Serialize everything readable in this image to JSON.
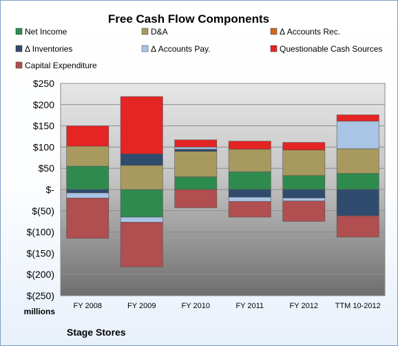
{
  "chart_data": {
    "type": "bar",
    "stacked": true,
    "title": "Free Cash Flow Components",
    "unit_label": "millions",
    "footer": "Stage Stores",
    "categories": [
      "FY 2008",
      "FY 2009",
      "FY 2010",
      "FY 2011",
      "FY 2012",
      "TTM 10-2012"
    ],
    "ylim": [
      -250,
      250
    ],
    "yticks": [
      250,
      200,
      150,
      100,
      50,
      0,
      -50,
      -100,
      -150,
      -200,
      -250
    ],
    "ytick_labels": [
      "$250",
      "$200",
      "$150",
      "$100",
      "$50",
      "$-",
      "$(50)",
      "$(100)",
      "$(150)",
      "$(200)",
      "$(250)"
    ],
    "legend_position": "top",
    "grid": true,
    "series": [
      {
        "name": "Net Income",
        "color": "#2e8b4e",
        "values": [
          55,
          -65,
          30,
          42,
          33,
          38
        ]
      },
      {
        "name": "D&A",
        "color": "#a89a5f",
        "values": [
          47,
          57,
          60,
          53,
          60,
          58
        ]
      },
      {
        "name": "Δ Accounts Rec.",
        "color": "#d2691e",
        "values": [
          0,
          0,
          0,
          0,
          0,
          0
        ]
      },
      {
        "name": "Δ Inventories",
        "color": "#2f4b6e",
        "values": [
          -8,
          27,
          5,
          -18,
          -20,
          -62
        ]
      },
      {
        "name": "Δ Accounts Pay.",
        "color": "#a9c4e4",
        "values": [
          -12,
          -12,
          5,
          -10,
          -7,
          65
        ]
      },
      {
        "name": "Questionable Cash Sources",
        "color": "#e52424",
        "values": [
          48,
          135,
          17,
          19,
          18,
          15
        ]
      },
      {
        "name": "Capital Expenditure",
        "color": "#b04e50",
        "values": [
          -95,
          -105,
          -43,
          -37,
          -48,
          -50
        ]
      }
    ]
  }
}
